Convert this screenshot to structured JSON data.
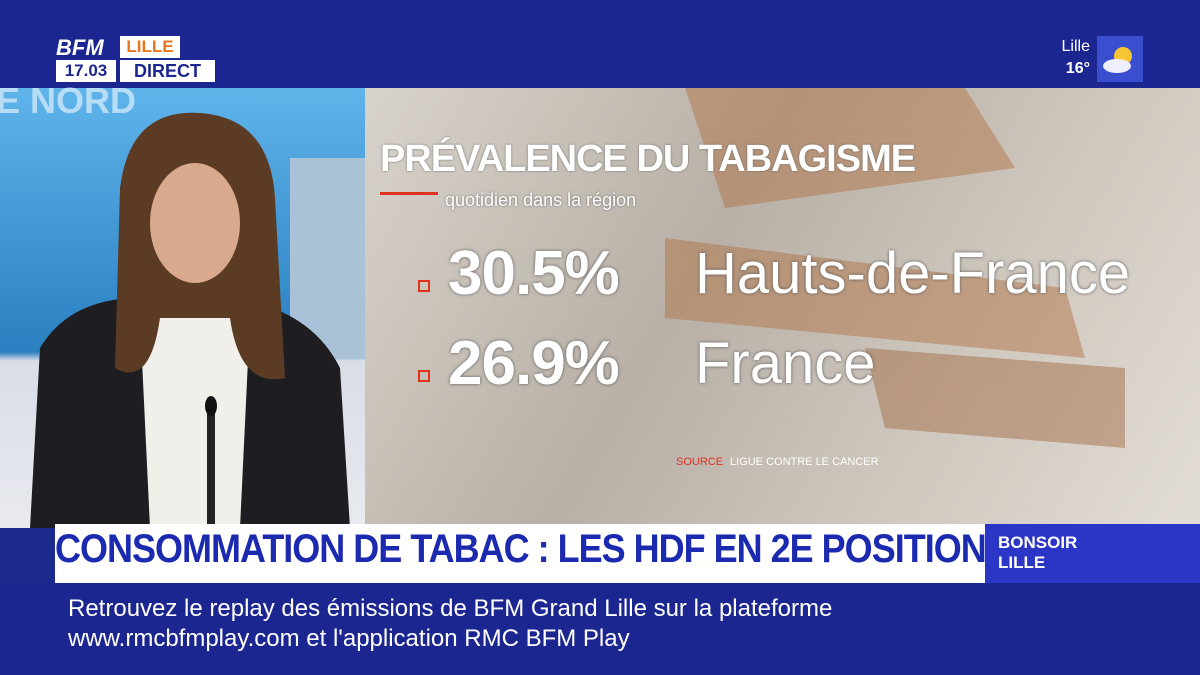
{
  "header": {
    "logo": "BFM",
    "city": "LILLE",
    "time": "17.03",
    "status": "DIRECT",
    "weather_city": "Lille",
    "temperature": "16°"
  },
  "backdrop": {
    "text": "E NORD"
  },
  "graphic": {
    "title": "PRÉVALENCE DU TABAGISME",
    "subtitle": "quotidien dans la région",
    "items": [
      {
        "value": "30.5%",
        "label": "Hauts-de-France"
      },
      {
        "value": "26.9%",
        "label": "France"
      }
    ],
    "source_prefix": "SOURCE",
    "source": "LIGUE CONTRE LE CANCER"
  },
  "banner": {
    "headline": "CONSOMMATION DE TABAC : LES HDF EN 2E POSITION",
    "show_line1": "BONSOIR",
    "show_line2": "LILLE"
  },
  "ticker": {
    "lines": [
      "Retrouvez le replay des émissions de BFM Grand Lille sur la plateforme",
      "www.rmcbfmplay.com et l'application RMC BFM Play"
    ]
  }
}
